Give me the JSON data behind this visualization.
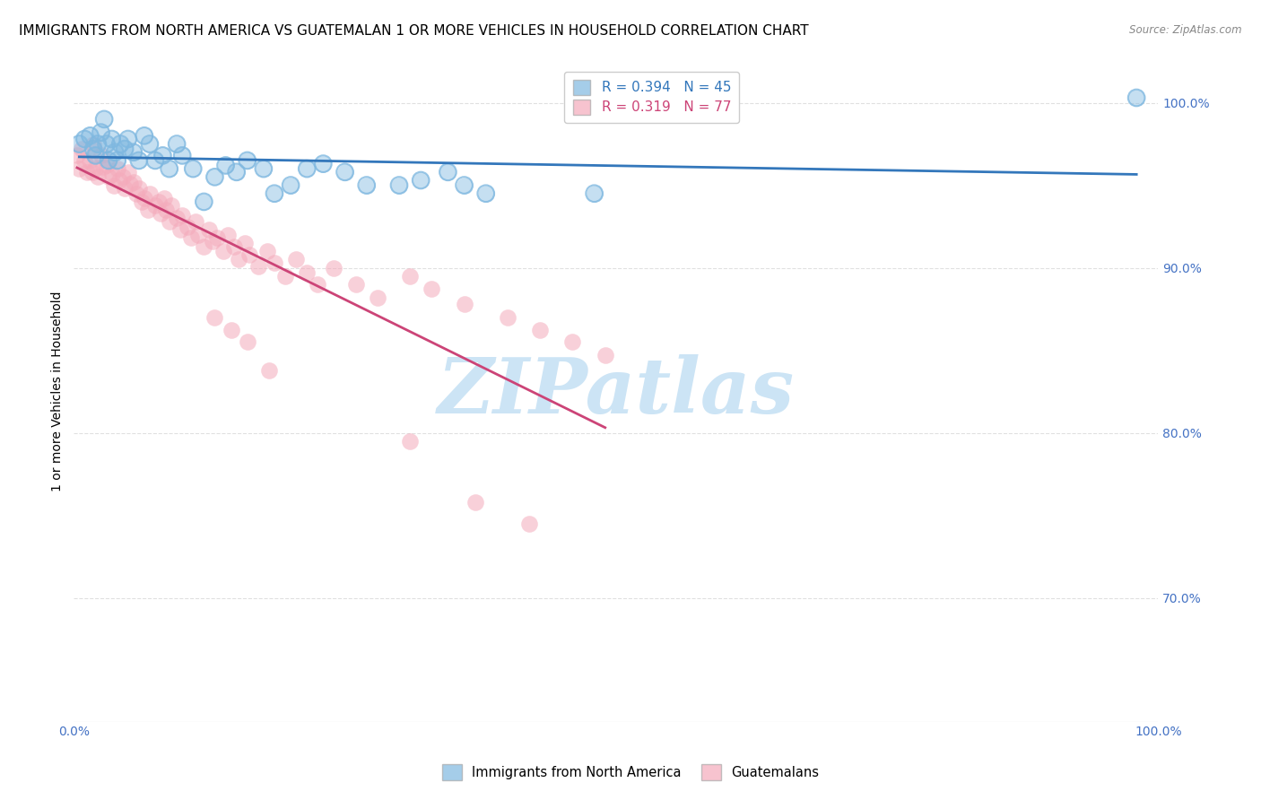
{
  "title": "IMMIGRANTS FROM NORTH AMERICA VS GUATEMALAN 1 OR MORE VEHICLES IN HOUSEHOLD CORRELATION CHART",
  "source": "Source: ZipAtlas.com",
  "ylabel": "1 or more Vehicles in Household",
  "legend_labels": [
    "Immigrants from North America",
    "Guatemalans"
  ],
  "blue_R": 0.394,
  "blue_N": 45,
  "pink_R": 0.319,
  "pink_N": 77,
  "blue_color": "#7fb8e0",
  "pink_color": "#f4aabb",
  "blue_line_color": "#3377bb",
  "pink_line_color": "#cc4477",
  "xlim": [
    0.0,
    1.0
  ],
  "ylim": [
    0.625,
    1.025
  ],
  "yticks": [
    0.7,
    0.8,
    0.9,
    1.0
  ],
  "ytick_labels": [
    "70.0%",
    "80.0%",
    "90.0%",
    "100.0%"
  ],
  "xticks": [
    0.0,
    0.2,
    0.4,
    0.6,
    0.8,
    1.0
  ],
  "xtick_labels": [
    "0.0%",
    "",
    "",
    "",
    "",
    "100.0%"
  ],
  "blue_x": [
    0.005,
    0.01,
    0.015,
    0.018,
    0.02,
    0.022,
    0.025,
    0.028,
    0.03,
    0.032,
    0.035,
    0.038,
    0.04,
    0.043,
    0.047,
    0.05,
    0.055,
    0.06,
    0.065,
    0.07,
    0.075,
    0.082,
    0.088,
    0.095,
    0.1,
    0.11,
    0.12,
    0.13,
    0.14,
    0.15,
    0.16,
    0.175,
    0.185,
    0.2,
    0.215,
    0.23,
    0.25,
    0.27,
    0.3,
    0.32,
    0.345,
    0.36,
    0.38,
    0.48,
    0.98
  ],
  "blue_y": [
    0.975,
    0.978,
    0.98,
    0.972,
    0.968,
    0.975,
    0.982,
    0.99,
    0.975,
    0.965,
    0.978,
    0.97,
    0.965,
    0.975,
    0.972,
    0.978,
    0.97,
    0.965,
    0.98,
    0.975,
    0.965,
    0.968,
    0.96,
    0.975,
    0.968,
    0.96,
    0.94,
    0.955,
    0.962,
    0.958,
    0.965,
    0.96,
    0.945,
    0.95,
    0.96,
    0.963,
    0.958,
    0.95,
    0.95,
    0.953,
    0.958,
    0.95,
    0.945,
    0.945,
    1.003
  ],
  "pink_x": [
    0.003,
    0.005,
    0.007,
    0.01,
    0.012,
    0.015,
    0.017,
    0.018,
    0.02,
    0.022,
    0.025,
    0.027,
    0.03,
    0.032,
    0.035,
    0.037,
    0.04,
    0.042,
    0.045,
    0.047,
    0.05,
    0.052,
    0.055,
    0.058,
    0.06,
    0.063,
    0.065,
    0.068,
    0.07,
    0.075,
    0.078,
    0.08,
    0.083,
    0.085,
    0.088,
    0.09,
    0.095,
    0.098,
    0.1,
    0.105,
    0.108,
    0.112,
    0.115,
    0.12,
    0.125,
    0.128,
    0.132,
    0.138,
    0.142,
    0.148,
    0.152,
    0.158,
    0.162,
    0.17,
    0.178,
    0.185,
    0.195,
    0.205,
    0.215,
    0.225,
    0.24,
    0.26,
    0.28,
    0.31,
    0.33,
    0.36,
    0.4,
    0.43,
    0.46,
    0.49,
    0.13,
    0.145,
    0.16,
    0.18,
    0.31,
    0.37,
    0.42
  ],
  "pink_y": [
    0.968,
    0.96,
    0.972,
    0.965,
    0.958,
    0.965,
    0.958,
    0.975,
    0.96,
    0.955,
    0.968,
    0.961,
    0.962,
    0.955,
    0.957,
    0.95,
    0.96,
    0.953,
    0.955,
    0.948,
    0.958,
    0.951,
    0.952,
    0.945,
    0.948,
    0.94,
    0.942,
    0.935,
    0.945,
    0.938,
    0.94,
    0.933,
    0.942,
    0.935,
    0.928,
    0.938,
    0.93,
    0.923,
    0.932,
    0.925,
    0.918,
    0.928,
    0.92,
    0.913,
    0.923,
    0.916,
    0.918,
    0.91,
    0.92,
    0.913,
    0.905,
    0.915,
    0.908,
    0.901,
    0.91,
    0.903,
    0.895,
    0.905,
    0.897,
    0.89,
    0.9,
    0.89,
    0.882,
    0.895,
    0.887,
    0.878,
    0.87,
    0.862,
    0.855,
    0.847,
    0.87,
    0.862,
    0.855,
    0.838,
    0.795,
    0.758,
    0.745
  ],
  "watermark_text": "ZIPatlas",
  "watermark_color": "#cce4f5",
  "background_color": "#ffffff",
  "grid_color": "#e0e0e0",
  "axis_tick_color": "#4472c4",
  "title_fontsize": 11,
  "label_fontsize": 10,
  "tick_fontsize": 10
}
